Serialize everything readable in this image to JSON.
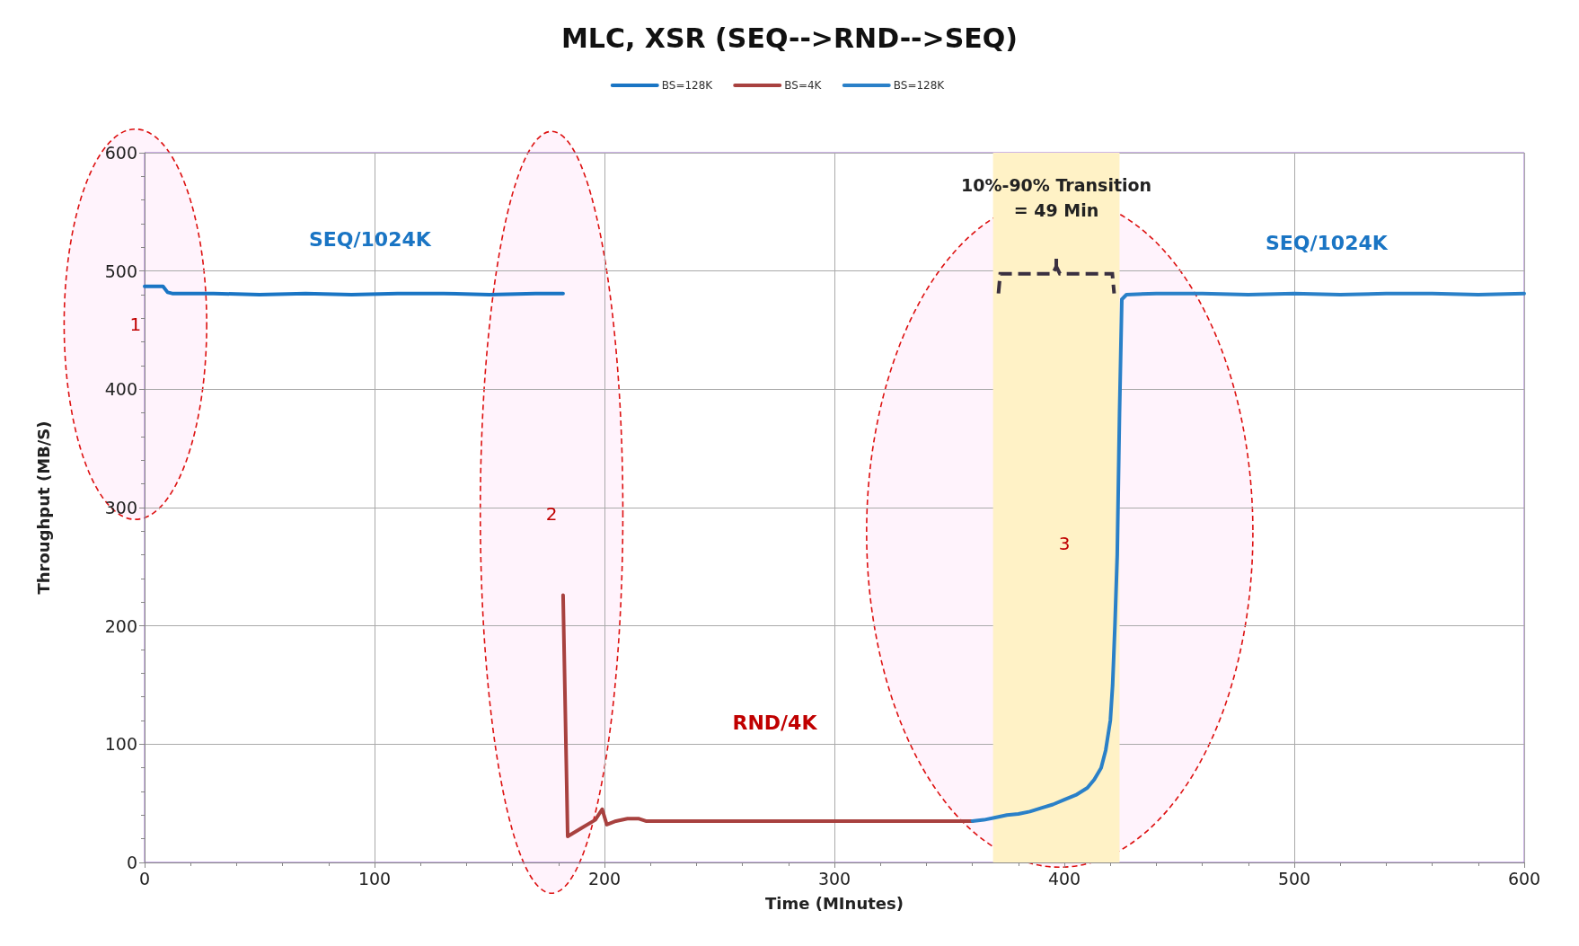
{
  "chart_data": {
    "type": "line",
    "title": "MLC, XSR (SEQ-->RND-->SEQ)",
    "xlabel": "Time (MInutes)",
    "ylabel": "Throughput (MB/S)",
    "xlim": [
      0,
      600
    ],
    "xticks": [
      0,
      100,
      200,
      300,
      400,
      500,
      600
    ],
    "ylim": [
      0,
      600
    ],
    "yticks": [
      0,
      100,
      200,
      300,
      400,
      500,
      600
    ],
    "grid": true,
    "legend": "top",
    "marker": "none",
    "line_style": "solid",
    "series": [
      {
        "name": "BS=128K",
        "color": "#1a75c4",
        "x": [
          0,
          4,
          8,
          10,
          12,
          30,
          50,
          70,
          90,
          110,
          130,
          150,
          170,
          182
        ],
        "values": [
          487,
          487,
          487,
          482,
          481,
          481,
          480,
          481,
          480,
          481,
          481,
          480,
          481,
          481
        ]
      },
      {
        "name": "BS=4K",
        "color": "#a8413f",
        "x": [
          182,
          184,
          190,
          196,
          199,
          201,
          205,
          210,
          215,
          218,
          220,
          240,
          260,
          280,
          300,
          320,
          340,
          360
        ],
        "values": [
          226,
          22,
          29,
          36,
          45,
          32,
          35,
          37,
          37,
          35,
          35,
          35,
          35,
          35,
          35,
          35,
          35,
          35
        ]
      },
      {
        "name": "BS=128K",
        "color": "#2a80c8",
        "x": [
          360,
          365,
          370,
          375,
          380,
          385,
          390,
          395,
          400,
          405,
          410,
          413,
          416,
          418,
          420,
          421,
          422,
          423,
          424,
          425,
          427,
          440,
          460,
          480,
          500,
          520,
          540,
          560,
          580,
          600
        ],
        "values": [
          35,
          36,
          38,
          40,
          41,
          43,
          46,
          49,
          53,
          57,
          63,
          70,
          80,
          95,
          120,
          150,
          200,
          260,
          380,
          476,
          480,
          481,
          481,
          480,
          481,
          480,
          481,
          481,
          480,
          481
        ]
      }
    ],
    "bands": [
      {
        "axis": "x",
        "from": 369,
        "to": 424,
        "label": "10%-90% Transition\n= 49 Min",
        "color": "#fff2c6"
      }
    ],
    "annotations": [
      "SEQ/1024K",
      "RND/4K",
      "SEQ/1024K",
      "1",
      "2",
      "3"
    ]
  }
}
